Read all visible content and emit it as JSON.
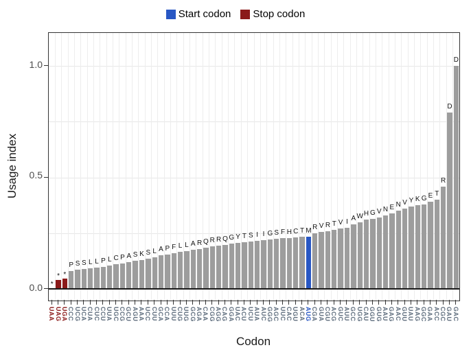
{
  "legend": {
    "start_label": "Start codon",
    "stop_label": "Stop codon"
  },
  "colors": {
    "start": "#2857c4",
    "stop": "#8b1a1a",
    "bar": "#9d9d9d",
    "grid_h": "#e7e7e7",
    "grid_v": "#ededed",
    "axis_text": "#4d4d4d",
    "codon_text": "#5f6e7e"
  },
  "axes": {
    "y_title": "Usage index",
    "x_title": "Codon",
    "y_ticks": [
      "0.0",
      "0.5",
      "1.0"
    ]
  },
  "chart_data": {
    "type": "bar",
    "title": "",
    "xlabel": "Codon",
    "ylabel": "Usage index",
    "ylim": [
      0,
      1.1
    ],
    "ytick_values": [
      0,
      0.5,
      1.0
    ],
    "grid": "on",
    "legend_position": "top-center",
    "bars": [
      {
        "codon": "UAA",
        "aa": "*",
        "value": 0.003,
        "type": "stop"
      },
      {
        "codon": "UAG",
        "aa": "*",
        "value": 0.04,
        "type": "stop"
      },
      {
        "codon": "UGA",
        "aa": "*",
        "value": 0.047,
        "type": "stop"
      },
      {
        "codon": "CCC",
        "aa": "P",
        "value": 0.08,
        "type": "normal"
      },
      {
        "codon": "UCG",
        "aa": "S",
        "value": 0.085,
        "type": "normal"
      },
      {
        "codon": "UCA",
        "aa": "S",
        "value": 0.09,
        "type": "normal"
      },
      {
        "codon": "CUA",
        "aa": "L",
        "value": 0.092,
        "type": "normal"
      },
      {
        "codon": "CUC",
        "aa": "L",
        "value": 0.095,
        "type": "normal"
      },
      {
        "codon": "CCU",
        "aa": "P",
        "value": 0.1,
        "type": "normal"
      },
      {
        "codon": "UUA",
        "aa": "L",
        "value": 0.105,
        "type": "normal"
      },
      {
        "codon": "UGC",
        "aa": "C",
        "value": 0.11,
        "type": "normal"
      },
      {
        "codon": "CCG",
        "aa": "P",
        "value": 0.115,
        "type": "normal"
      },
      {
        "codon": "GCU",
        "aa": "A",
        "value": 0.12,
        "type": "normal"
      },
      {
        "codon": "AGU",
        "aa": "S",
        "value": 0.125,
        "type": "normal"
      },
      {
        "codon": "AAA",
        "aa": "K",
        "value": 0.13,
        "type": "normal"
      },
      {
        "codon": "UCC",
        "aa": "S",
        "value": 0.135,
        "type": "normal"
      },
      {
        "codon": "CUU",
        "aa": "L",
        "value": 0.142,
        "type": "normal"
      },
      {
        "codon": "GCA",
        "aa": "A",
        "value": 0.15,
        "type": "normal"
      },
      {
        "codon": "CCA",
        "aa": "P",
        "value": 0.155,
        "type": "normal"
      },
      {
        "codon": "UUU",
        "aa": "F",
        "value": 0.16,
        "type": "normal"
      },
      {
        "codon": "CUG",
        "aa": "L",
        "value": 0.165,
        "type": "normal"
      },
      {
        "codon": "UUG",
        "aa": "L",
        "value": 0.17,
        "type": "normal"
      },
      {
        "codon": "GCG",
        "aa": "A",
        "value": 0.175,
        "type": "normal"
      },
      {
        "codon": "AGA",
        "aa": "R",
        "value": 0.18,
        "type": "normal"
      },
      {
        "codon": "CAA",
        "aa": "Q",
        "value": 0.185,
        "type": "normal"
      },
      {
        "codon": "CGG",
        "aa": "R",
        "value": 0.19,
        "type": "normal"
      },
      {
        "codon": "AGG",
        "aa": "R",
        "value": 0.195,
        "type": "normal"
      },
      {
        "codon": "CAG",
        "aa": "Q",
        "value": 0.198,
        "type": "normal"
      },
      {
        "codon": "GGA",
        "aa": "G",
        "value": 0.202,
        "type": "normal"
      },
      {
        "codon": "UAC",
        "aa": "Y",
        "value": 0.206,
        "type": "normal"
      },
      {
        "codon": "ACU",
        "aa": "T",
        "value": 0.21,
        "type": "normal"
      },
      {
        "codon": "UCU",
        "aa": "S",
        "value": 0.213,
        "type": "normal"
      },
      {
        "codon": "AUA",
        "aa": "I",
        "value": 0.216,
        "type": "normal"
      },
      {
        "codon": "AUC",
        "aa": "I",
        "value": 0.219,
        "type": "normal"
      },
      {
        "codon": "GGG",
        "aa": "G",
        "value": 0.222,
        "type": "normal"
      },
      {
        "codon": "AGC",
        "aa": "S",
        "value": 0.225,
        "type": "normal"
      },
      {
        "codon": "UUC",
        "aa": "F",
        "value": 0.227,
        "type": "normal"
      },
      {
        "codon": "CAC",
        "aa": "H",
        "value": 0.229,
        "type": "normal"
      },
      {
        "codon": "UGU",
        "aa": "C",
        "value": 0.231,
        "type": "normal"
      },
      {
        "codon": "ACA",
        "aa": "T",
        "value": 0.233,
        "type": "normal"
      },
      {
        "codon": "AUG",
        "aa": "M",
        "value": 0.235,
        "type": "start"
      },
      {
        "codon": "CGA",
        "aa": "R",
        "value": 0.25,
        "type": "normal"
      },
      {
        "codon": "GUA",
        "aa": "V",
        "value": 0.255,
        "type": "normal"
      },
      {
        "codon": "CGU",
        "aa": "R",
        "value": 0.26,
        "type": "normal"
      },
      {
        "codon": "ACG",
        "aa": "T",
        "value": 0.265,
        "type": "normal"
      },
      {
        "codon": "GUC",
        "aa": "V",
        "value": 0.27,
        "type": "normal"
      },
      {
        "codon": "AUU",
        "aa": "I",
        "value": 0.275,
        "type": "normal"
      },
      {
        "codon": "GCC",
        "aa": "A",
        "value": 0.29,
        "type": "normal"
      },
      {
        "codon": "UGG",
        "aa": "W",
        "value": 0.3,
        "type": "normal"
      },
      {
        "codon": "CAU",
        "aa": "H",
        "value": 0.31,
        "type": "normal"
      },
      {
        "codon": "GGU",
        "aa": "G",
        "value": 0.315,
        "type": "normal"
      },
      {
        "codon": "GUG",
        "aa": "V",
        "value": 0.32,
        "type": "normal"
      },
      {
        "codon": "AAU",
        "aa": "N",
        "value": 0.33,
        "type": "normal"
      },
      {
        "codon": "GAG",
        "aa": "E",
        "value": 0.34,
        "type": "normal"
      },
      {
        "codon": "AAC",
        "aa": "N",
        "value": 0.35,
        "type": "normal"
      },
      {
        "codon": "GUU",
        "aa": "V",
        "value": 0.36,
        "type": "normal"
      },
      {
        "codon": "UAU",
        "aa": "Y",
        "value": 0.37,
        "type": "normal"
      },
      {
        "codon": "AAG",
        "aa": "K",
        "value": 0.375,
        "type": "normal"
      },
      {
        "codon": "GGC",
        "aa": "G",
        "value": 0.38,
        "type": "normal"
      },
      {
        "codon": "GAA",
        "aa": "E",
        "value": 0.39,
        "type": "normal"
      },
      {
        "codon": "ACC",
        "aa": "T",
        "value": 0.4,
        "type": "normal"
      },
      {
        "codon": "CGC",
        "aa": "R",
        "value": 0.46,
        "type": "normal"
      },
      {
        "codon": "GAU",
        "aa": "D",
        "value": 0.79,
        "type": "normal"
      },
      {
        "codon": "GAC",
        "aa": "D",
        "value": 1.0,
        "type": "normal"
      }
    ]
  }
}
